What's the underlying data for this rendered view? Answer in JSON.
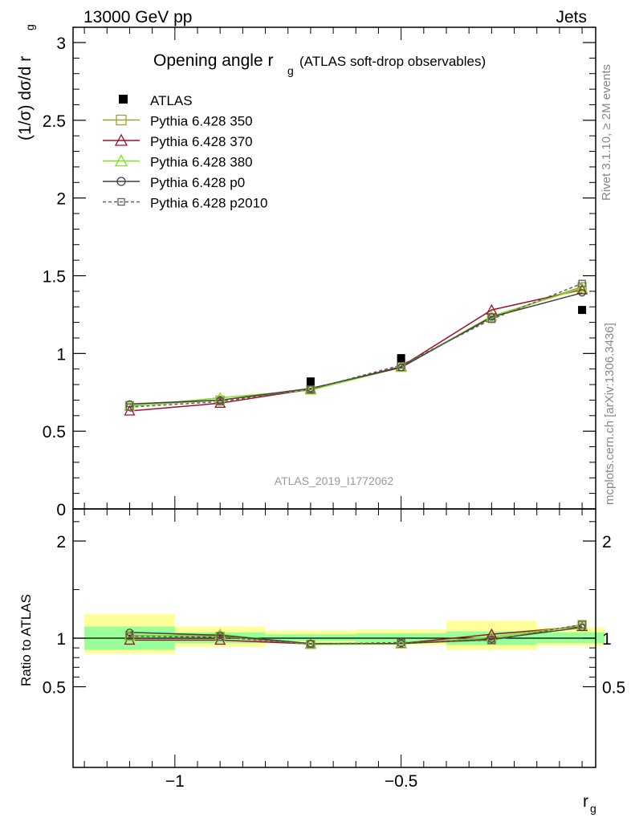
{
  "header": {
    "left": "13000 GeV pp",
    "right": "Jets"
  },
  "side_labels": {
    "top": "Rivet 3.1.10, ≥ 2M events",
    "bottom": "mcplots.cern.ch [arXiv:1306.3436]"
  },
  "watermark": "ATLAS_2019_I1772062",
  "chart_data": [
    {
      "type": "line",
      "title_main": "Opening angle r",
      "title_sub": "g",
      "title_rest": "(ATLAS soft-drop observables)",
      "ylabel": "(1/σ) dσ/d r",
      "ylabel_sub": "g",
      "ylim": [
        0,
        3.1
      ],
      "y_ticks": [
        "0",
        "0.5",
        "1",
        "1.5",
        "2",
        "2.5",
        "3"
      ],
      "legend_position": "top-left",
      "x": [
        -1.1,
        -0.9,
        -0.7,
        -0.5,
        -0.3,
        -0.1
      ],
      "x_edges": [
        -1.2,
        -1.0,
        -0.8,
        -0.6,
        -0.4,
        -0.2,
        -0.05
      ],
      "data": {
        "name": "ATLAS",
        "values": [
          null,
          null,
          0.82,
          0.97,
          null,
          1.28
        ]
      },
      "series": [
        {
          "name": "Pythia 6.428 350",
          "color": "#a0a030",
          "marker": "square",
          "dash": "",
          "values": [
            0.665,
            0.7,
            0.765,
            0.915,
            1.23,
            1.43
          ]
        },
        {
          "name": "Pythia 6.428 370",
          "color": "#a0102a",
          "marker": "triangle",
          "dash": "",
          "values": [
            0.63,
            0.68,
            0.77,
            0.915,
            1.28,
            1.41
          ]
        },
        {
          "name": "Pythia 6.428 380",
          "color": "#80e020",
          "marker": "triangle",
          "dash": "",
          "values": [
            0.66,
            0.715,
            0.765,
            0.91,
            1.24,
            1.42
          ]
        },
        {
          "name": "Pythia 6.428 p0",
          "color": "#404040",
          "marker": "circle",
          "dash": "",
          "values": [
            0.675,
            0.7,
            0.775,
            0.91,
            1.235,
            1.39
          ]
        },
        {
          "name": "Pythia 6.428 p2010",
          "color": "#606060",
          "marker": "square",
          "dash": "4,3",
          "values": [
            0.655,
            0.69,
            0.77,
            0.925,
            1.22,
            1.45
          ]
        }
      ]
    },
    {
      "type": "line",
      "ylabel": "Ratio to ATLAS",
      "xlabel": "r",
      "xlabel_sub": "g",
      "ylim": [
        0.4,
        2.3
      ],
      "y_ticks": [
        "0.5",
        "1",
        "2"
      ],
      "x_ticks": [
        "−1",
        "−0.5"
      ],
      "xlim": [
        -1.225,
        -0.07
      ],
      "bands_inner": [
        [
          0.88,
          1.12
        ],
        [
          0.95,
          1.06
        ],
        [
          0.97,
          1.04
        ],
        [
          0.96,
          1.05
        ],
        [
          0.93,
          1.07
        ],
        [
          0.95,
          1.06
        ]
      ],
      "bands_outer": [
        [
          0.84,
          1.25
        ],
        [
          0.91,
          1.12
        ],
        [
          0.95,
          1.08
        ],
        [
          0.93,
          1.09
        ],
        [
          0.88,
          1.18
        ],
        [
          0.92,
          1.11
        ]
      ],
      "series": [
        {
          "name": "Pythia 6.428 350",
          "values": [
            1.03,
            1.02,
            0.935,
            0.945,
            0.98,
            1.14
          ]
        },
        {
          "name": "Pythia 6.428 370",
          "values": [
            0.98,
            0.98,
            0.94,
            0.945,
            1.04,
            1.12
          ]
        },
        {
          "name": "Pythia 6.428 380",
          "values": [
            1.02,
            1.04,
            0.935,
            0.94,
            1.01,
            1.13
          ]
        },
        {
          "name": "Pythia 6.428 p0",
          "values": [
            1.06,
            1.03,
            0.945,
            0.945,
            0.99,
            1.11
          ]
        },
        {
          "name": "Pythia 6.428 p2010",
          "values": [
            1.02,
            1.01,
            0.94,
            0.955,
            0.98,
            1.14
          ]
        }
      ]
    }
  ]
}
